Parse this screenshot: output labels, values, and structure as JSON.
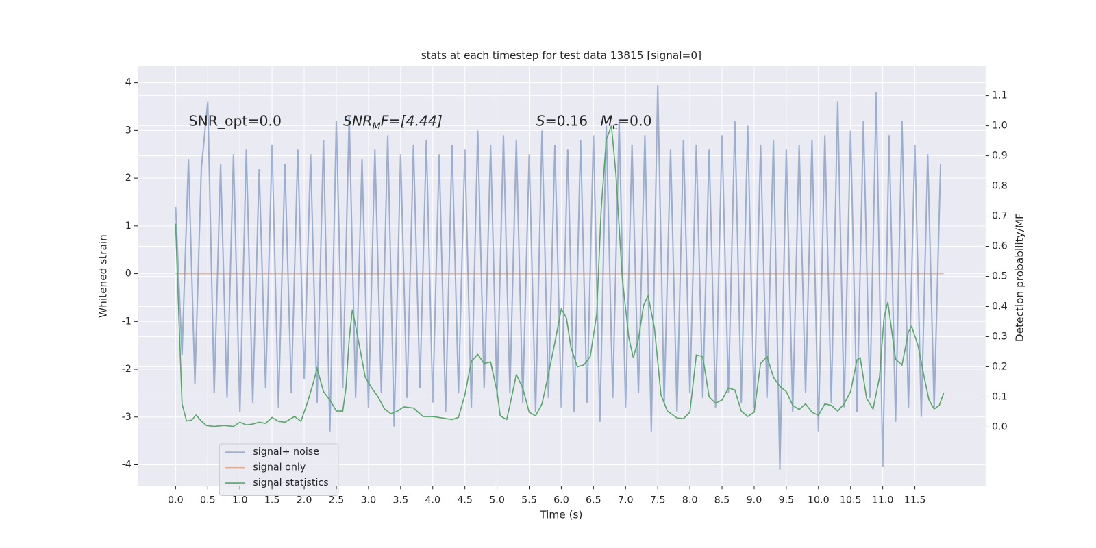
{
  "chart_data": {
    "type": "line",
    "title": "stats at each timestep for test data 13815 [signal=0]",
    "xlabel": "Time (s)",
    "ylabel": "Whitened strain",
    "y2label": "Detection probability/MF",
    "annotations": {
      "snr_opt": "SNR_opt=0.0",
      "snr_mf": {
        "symbol": "SNR",
        "sub": "M",
        "rest": "F=[4.44]"
      },
      "s": {
        "symbol": "S",
        "rest": "=0.16"
      },
      "mc": {
        "symbol": "M",
        "sub": "c",
        "rest": "=0.0"
      }
    },
    "xlim": [
      -0.59,
      12.6
    ],
    "ylim": [
      -4.44,
      4.34
    ],
    "y2lim": [
      -0.195,
      1.197
    ],
    "xticks": [
      {
        "value": 0,
        "label": "0.0"
      },
      0.5,
      {
        "value": 1,
        "label": "1.0"
      },
      1.5,
      {
        "value": 2,
        "label": "2.0"
      },
      2.5,
      {
        "value": 3,
        "label": "3.0"
      },
      3.5,
      {
        "value": 4,
        "label": "4.0"
      },
      4.5,
      {
        "value": 5,
        "label": "5.0"
      },
      5.5,
      {
        "value": 6,
        "label": "6.0"
      },
      6.5,
      {
        "value": 7,
        "label": "7.0"
      },
      7.5,
      {
        "value": 8,
        "label": "8.0"
      },
      8.5,
      {
        "value": 9,
        "label": "9.0"
      },
      9.5,
      {
        "value": 10,
        "label": "10.0"
      },
      10.5,
      {
        "value": 11,
        "label": "11.0"
      },
      11.5
    ],
    "yticks": [
      -4,
      -3,
      -2,
      -1,
      0,
      1,
      2,
      3,
      4
    ],
    "y2ticks": [
      {
        "value": 0,
        "label": "0.0"
      },
      0.1,
      0.2,
      0.3,
      0.4,
      0.5,
      0.6,
      0.7,
      0.8,
      0.9,
      {
        "value": 1,
        "label": "1.0"
      },
      1.1
    ],
    "grid": true,
    "legend": "lower left",
    "series": [
      {
        "name": "signal+ noise",
        "color": "#4c72b0",
        "x": [
          0,
          0.1,
          0.2,
          0.3,
          0.4,
          0.5,
          0.6,
          0.7,
          0.8,
          0.9,
          1,
          1.1,
          1.2,
          1.3,
          1.4,
          1.5,
          1.6,
          1.7,
          1.8,
          1.9,
          2,
          2.1,
          2.2,
          2.3,
          2.4,
          2.5,
          2.6,
          2.7,
          2.8,
          2.9,
          3,
          3.1,
          3.2,
          3.3,
          3.4,
          3.5,
          3.6,
          3.7,
          3.8,
          3.9,
          4,
          4.1,
          4.2,
          4.3,
          4.4,
          4.5,
          4.6,
          4.7,
          4.8,
          4.9,
          5,
          5.1,
          5.2,
          5.3,
          5.4,
          5.5,
          5.6,
          5.7,
          5.8,
          5.9,
          6,
          6.1,
          6.2,
          6.3,
          6.4,
          6.5,
          6.6,
          6.7,
          6.8,
          6.9,
          7,
          7.1,
          7.2,
          7.3,
          7.4,
          7.5,
          7.6,
          7.7,
          7.8,
          7.9,
          8,
          8.1,
          8.2,
          8.3,
          8.4,
          8.5,
          8.6,
          8.7,
          8.8,
          8.9,
          9,
          9.1,
          9.2,
          9.3,
          9.4,
          9.5,
          9.6,
          9.7,
          9.8,
          9.9,
          10,
          10.1,
          10.2,
          10.3,
          10.4,
          10.5,
          10.6,
          10.7,
          10.8,
          10.9,
          11,
          11.1,
          11.2,
          11.3,
          11.4,
          11.5,
          11.6,
          11.7,
          11.8,
          11.9
        ],
        "values": [
          1.4,
          -1.7,
          2.4,
          -2.3,
          2.2,
          3.6,
          -2.5,
          2.3,
          -2.6,
          2.5,
          -2.9,
          2.6,
          -2.7,
          2.2,
          -2.4,
          2.7,
          -2.8,
          2.3,
          -2.5,
          2.6,
          -2.2,
          2.5,
          -2.7,
          2.8,
          -3.3,
          3.2,
          -2.4,
          3.3,
          -2.6,
          2.4,
          -2.8,
          2.6,
          -2.5,
          2.9,
          -3.2,
          2.5,
          -2.6,
          2.7,
          -2.4,
          2.8,
          -2.7,
          2.5,
          -2.9,
          2.7,
          -2.5,
          2.6,
          -2.8,
          3.0,
          -2.4,
          2.7,
          -2.6,
          2.9,
          -2.5,
          2.8,
          -2.7,
          2.5,
          -2.9,
          3.0,
          -2.6,
          2.7,
          -2.8,
          2.6,
          -2.9,
          2.8,
          -2.7,
          2.9,
          -3.1,
          3.1,
          -2.6,
          3.2,
          -2.8,
          2.7,
          -2.5,
          2.9,
          -3.3,
          3.95,
          -2.7,
          2.6,
          -2.9,
          2.8,
          -2.5,
          2.7,
          -2.6,
          2.6,
          -2.8,
          2.9,
          -2.5,
          3.2,
          -2.7,
          3.1,
          -2.8,
          2.7,
          -2.6,
          2.8,
          -4.1,
          2.6,
          -2.9,
          2.7,
          -2.5,
          2.8,
          -3.3,
          2.9,
          -2.7,
          3.6,
          -2.8,
          3.0,
          -2.9,
          3.2,
          -2.6,
          3.8,
          -4.05,
          2.9,
          -3.1,
          3.2,
          -2.8,
          2.7,
          -3.0,
          2.5,
          -2.8,
          2.3
        ]
      },
      {
        "name": "signal only",
        "color": "#dd8452",
        "x": [
          0,
          11.95
        ],
        "values": [
          0,
          0
        ]
      },
      {
        "name": "signal statistics",
        "color": "#55a868",
        "axis": "y2",
        "x": [
          0,
          0.05,
          0.1,
          0.17,
          0.25,
          0.32,
          0.4,
          0.48,
          0.6,
          0.75,
          0.9,
          1,
          1.1,
          1.2,
          1.3,
          1.4,
          1.5,
          1.6,
          1.7,
          1.85,
          1.95,
          2.05,
          2.15,
          2.2,
          2.3,
          2.4,
          2.5,
          2.6,
          2.65,
          2.7,
          2.75,
          2.85,
          2.95,
          3.05,
          3.15,
          3.25,
          3.35,
          3.45,
          3.55,
          3.7,
          3.85,
          4,
          4.15,
          4.3,
          4.4,
          4.5,
          4.6,
          4.7,
          4.8,
          4.9,
          5,
          5.05,
          5.15,
          5.2,
          5.3,
          5.4,
          5.5,
          5.6,
          5.7,
          5.8,
          5.9,
          6,
          6.08,
          6.15,
          6.25,
          6.35,
          6.45,
          6.55,
          6.62,
          6.7,
          6.78,
          6.85,
          6.95,
          7.05,
          7.12,
          7.2,
          7.28,
          7.35,
          7.45,
          7.55,
          7.65,
          7.8,
          7.9,
          8,
          8.1,
          8.2,
          8.3,
          8.4,
          8.5,
          8.6,
          8.7,
          8.8,
          8.9,
          9,
          9.1,
          9.2,
          9.3,
          9.4,
          9.5,
          9.6,
          9.7,
          9.8,
          9.9,
          10,
          10.1,
          10.2,
          10.3,
          10.4,
          10.5,
          10.6,
          10.65,
          10.75,
          10.85,
          10.95,
          11.02,
          11.08,
          11.15,
          11.2,
          11.3,
          11.4,
          11.45,
          11.55,
          11.65,
          11.72,
          11.8,
          11.88,
          11.95
        ],
        "values": [
          0.675,
          0.37,
          0.077,
          0.02,
          0.023,
          0.04,
          0.02,
          0.005,
          0.002,
          0.005,
          0.002,
          0.016,
          0.007,
          0.01,
          0.016,
          0.012,
          0.032,
          0.019,
          0.016,
          0.035,
          0.019,
          0.081,
          0.153,
          0.195,
          0.118,
          0.09,
          0.053,
          0.053,
          0.13,
          0.292,
          0.39,
          0.28,
          0.165,
          0.13,
          0.1,
          0.06,
          0.044,
          0.053,
          0.067,
          0.063,
          0.035,
          0.035,
          0.03,
          0.025,
          0.032,
          0.107,
          0.218,
          0.241,
          0.211,
          0.216,
          0.118,
          0.037,
          0.025,
          0.072,
          0.174,
          0.13,
          0.049,
          0.037,
          0.077,
          0.176,
          0.281,
          0.392,
          0.362,
          0.264,
          0.2,
          0.206,
          0.234,
          0.374,
          0.722,
          0.954,
          1.0,
          0.838,
          0.49,
          0.297,
          0.23,
          0.292,
          0.404,
          0.436,
          0.327,
          0.107,
          0.053,
          0.03,
          0.028,
          0.049,
          0.239,
          0.234,
          0.1,
          0.079,
          0.09,
          0.13,
          0.123,
          0.053,
          0.035,
          0.049,
          0.211,
          0.234,
          0.165,
          0.135,
          0.118,
          0.072,
          0.058,
          0.077,
          0.049,
          0.039,
          0.077,
          0.072,
          0.053,
          0.077,
          0.118,
          0.223,
          0.23,
          0.095,
          0.06,
          0.165,
          0.362,
          0.415,
          0.304,
          0.225,
          0.206,
          0.316,
          0.334,
          0.27,
          0.16,
          0.09,
          0.06,
          0.072,
          0.114
        ]
      }
    ]
  }
}
